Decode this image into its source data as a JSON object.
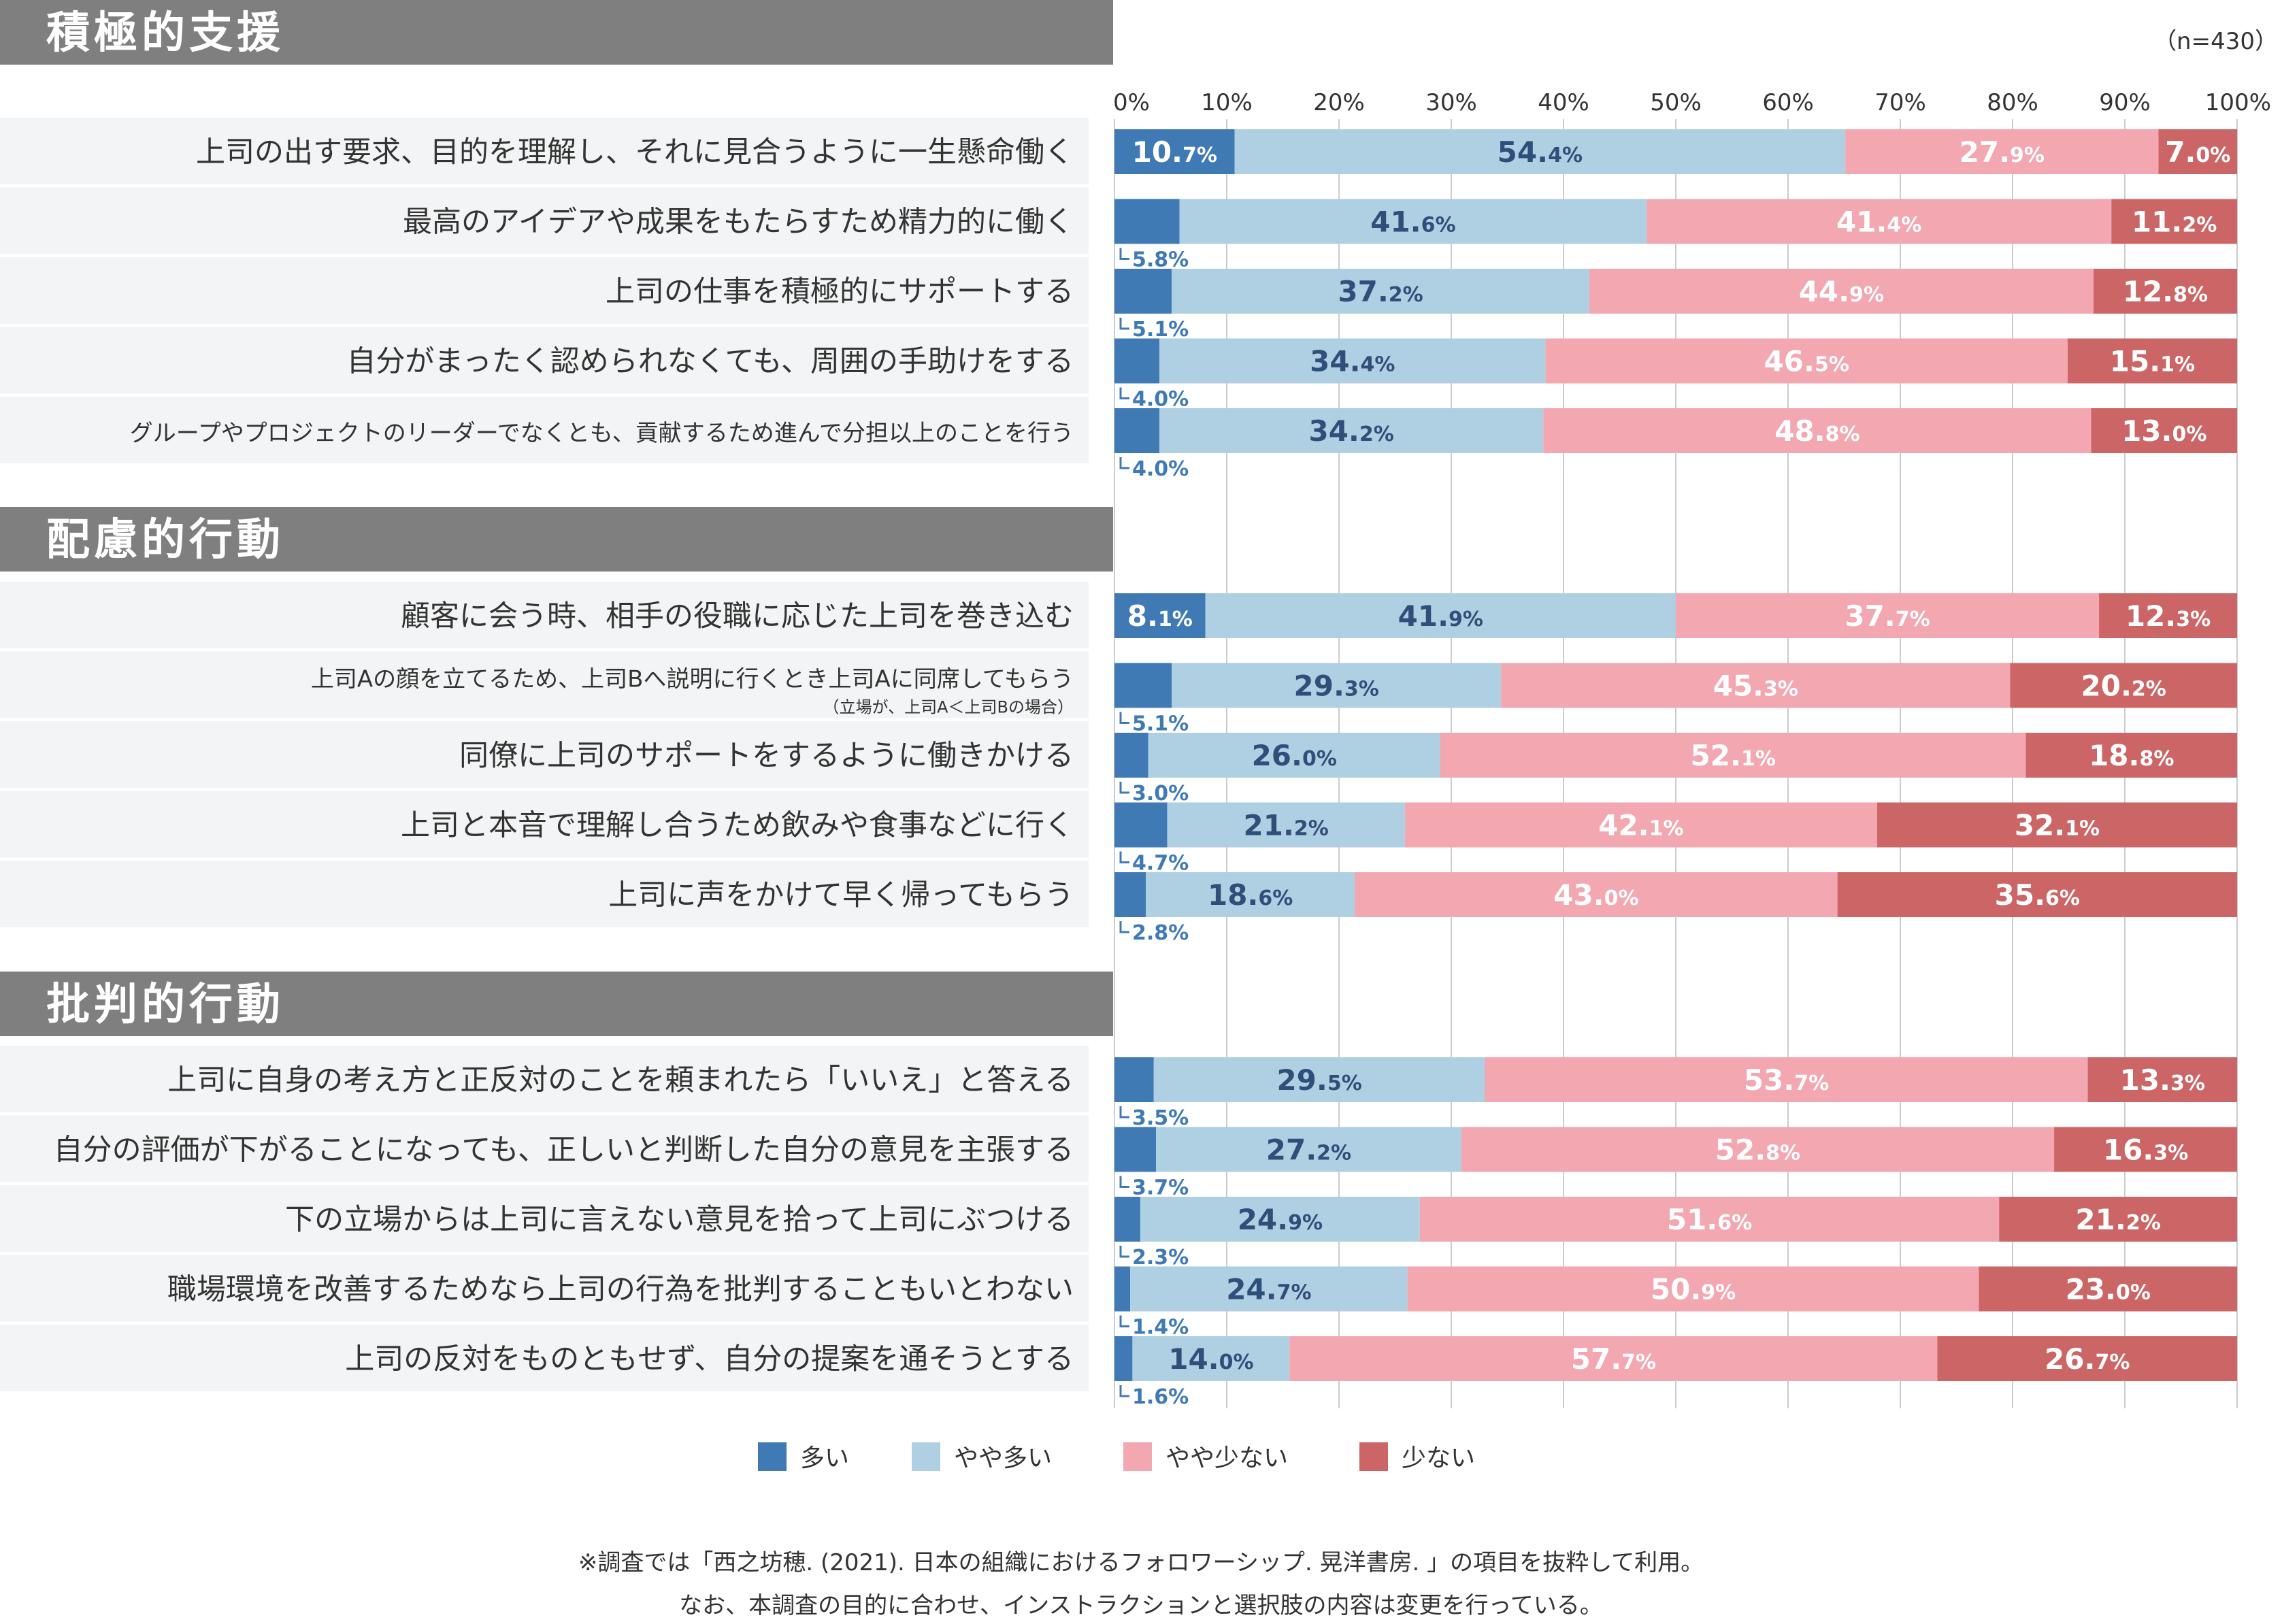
{
  "n_label": "（n=430）",
  "axis_ticks": [
    "0%",
    "10%",
    "20%",
    "30%",
    "40%",
    "50%",
    "60%",
    "70%",
    "80%",
    "90%",
    "100%"
  ],
  "legend": [
    {
      "label": "多い",
      "color": "#3f7ab5"
    },
    {
      "label": "やや多い",
      "color": "#afcfe2"
    },
    {
      "label": "やや少ない",
      "color": "#f2a7b1"
    },
    {
      "label": "少ない",
      "color": "#cc6666"
    }
  ],
  "footnote_1": "※調査では「西之坊穂. (2021). 日本の組織におけるフォロワーシップ. 晃洋書房. 」の項目を抜粋して利用。",
  "footnote_2": "なお、本調査の目的に合わせ、インストラクションと選択肢の内容は変更を行っている。",
  "chart_data": {
    "type": "bar",
    "orientation": "horizontal-stacked-100",
    "series_names": [
      "多い",
      "やや多い",
      "やや少ない",
      "少ない"
    ],
    "xlim": [
      0,
      100
    ],
    "sections": [
      {
        "title": "積極的支援",
        "rows": [
          {
            "label": "上司の出す要求、目的を理解し、それに見合うように一生懸命働く",
            "values": [
              10.7,
              54.4,
              27.9,
              7.0
            ]
          },
          {
            "label": "最高のアイデアや成果をもたらすため精力的に働く",
            "values": [
              5.8,
              41.6,
              41.4,
              11.2
            ]
          },
          {
            "label": "上司の仕事を積極的にサポートする",
            "values": [
              5.1,
              37.2,
              44.9,
              12.8
            ]
          },
          {
            "label": "自分がまったく認められなくても、周囲の手助けをする",
            "values": [
              4.0,
              34.4,
              46.5,
              15.1
            ]
          },
          {
            "label": "グループやプロジェクトのリーダーでなくとも、貢献するため進んで分担以上のことを行う",
            "values": [
              4.0,
              34.2,
              48.8,
              13.0
            ],
            "small": true
          }
        ]
      },
      {
        "title": "配慮的行動",
        "rows": [
          {
            "label": "顧客に会う時、相手の役職に応じた上司を巻き込む",
            "values": [
              8.1,
              41.9,
              37.7,
              12.3
            ]
          },
          {
            "label": "上司Aの顔を立てるため、上司Bへ説明に行くとき上司Aに同席してもらう",
            "note": "（立場が、上司A＜上司Bの場合）",
            "values": [
              5.1,
              29.3,
              45.3,
              20.2
            ],
            "small": true
          },
          {
            "label": "同僚に上司のサポートをするように働きかける",
            "values": [
              3.0,
              26.0,
              52.1,
              18.8
            ]
          },
          {
            "label": "上司と本音で理解し合うため飲みや食事などに行く",
            "values": [
              4.7,
              21.2,
              42.1,
              32.1
            ]
          },
          {
            "label": "上司に声をかけて早く帰ってもらう",
            "values": [
              2.8,
              18.6,
              43.0,
              35.6
            ]
          }
        ]
      },
      {
        "title": "批判的行動",
        "rows": [
          {
            "label": "上司に自身の考え方と正反対のことを頼まれたら「いいえ」と答える",
            "values": [
              3.5,
              29.5,
              53.7,
              13.3
            ]
          },
          {
            "label": "自分の評価が下がることになっても、正しいと判断した自分の意見を主張する",
            "values": [
              3.7,
              27.2,
              52.8,
              16.3
            ]
          },
          {
            "label": "下の立場からは上司に言えない意見を拾って上司にぶつける",
            "values": [
              2.3,
              24.9,
              51.6,
              21.2
            ]
          },
          {
            "label": "職場環境を改善するためなら上司の行為を批判することもいとわない",
            "values": [
              1.4,
              24.7,
              50.9,
              23.0
            ]
          },
          {
            "label": "上司の反対をものともせず、自分の提案を通そうとする",
            "values": [
              1.6,
              14.0,
              57.7,
              26.7
            ]
          }
        ]
      }
    ]
  }
}
